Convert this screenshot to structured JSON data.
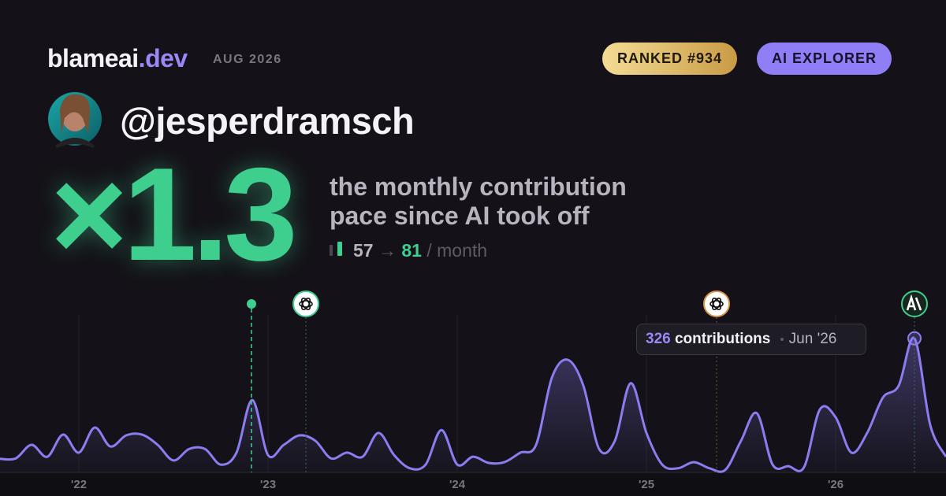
{
  "header": {
    "brand": "blameai",
    "brand_tld": ".dev",
    "date": "AUG 2026",
    "rank_badge": "RANKED #934",
    "tier_badge": "AI EXPLORER"
  },
  "profile": {
    "handle": "@jesperdramsch"
  },
  "hero": {
    "multiplier": "×1.3",
    "caption_line1": "the monthly contribution",
    "caption_line2": "pace since AI took off",
    "before": 57,
    "arrow": "→",
    "after": 81,
    "unit": "/ month"
  },
  "chart_data": {
    "type": "line",
    "categories": [
      null,
      null,
      null,
      null,
      null,
      "'22",
      null,
      null,
      null,
      null,
      null,
      null,
      null,
      null,
      null,
      null,
      null,
      "'23",
      null,
      null,
      null,
      null,
      null,
      null,
      null,
      null,
      null,
      null,
      null,
      "'24",
      null,
      null,
      null,
      null,
      null,
      null,
      null,
      null,
      null,
      null,
      null,
      "'25",
      null,
      null,
      null,
      null,
      null,
      null,
      null,
      null,
      null,
      null,
      null,
      "'26",
      null,
      null,
      null,
      null,
      null,
      null,
      null
    ],
    "values": [
      33,
      34,
      67,
      38,
      92,
      48,
      109,
      63,
      90,
      92,
      67,
      29,
      57,
      57,
      19,
      48,
      176,
      42,
      67,
      90,
      77,
      34,
      48,
      38,
      96,
      42,
      10,
      19,
      103,
      19,
      38,
      23,
      25,
      48,
      67,
      230,
      274,
      211,
      57,
      77,
      217,
      96,
      19,
      10,
      25,
      10,
      6,
      77,
      144,
      19,
      15,
      13,
      153,
      134,
      48,
      96,
      182,
      211,
      326,
      115,
      38
    ],
    "color": "#8b7cf0",
    "ylim": [
      0,
      383
    ],
    "tooltip": {
      "label": "contributions",
      "date": "Jun '26"
    }
  }
}
